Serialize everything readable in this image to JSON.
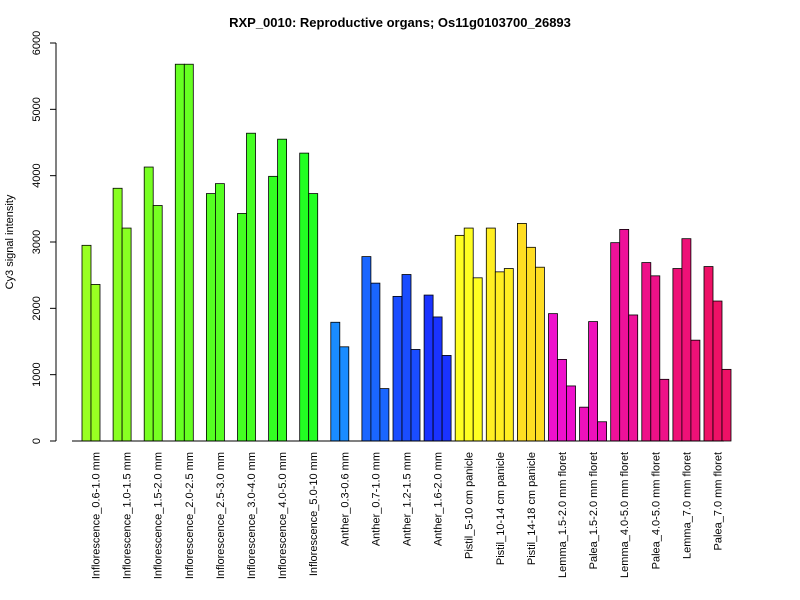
{
  "chart_data": {
    "type": "bar",
    "title": "RXP_0010: Reproductive organs; Os11g0103700_26893",
    "xlabel": "",
    "ylabel": "Cy3 signal intensity",
    "ylim": [
      0,
      6000
    ],
    "yticks": [
      0,
      1000,
      2000,
      3000,
      4000,
      5000,
      6000
    ],
    "grid": false,
    "groups": [
      {
        "label": "Inflorescence_0.6-1.0 mm",
        "color": "#99ff22",
        "values": [
          2950,
          2360
        ]
      },
      {
        "label": "Inflorescence_1.0-1.5 mm",
        "color": "#88ff22",
        "values": [
          3810,
          3210
        ]
      },
      {
        "label": "Inflorescence_1.5-2.0 mm",
        "color": "#77ff22",
        "values": [
          4130,
          3550
        ]
      },
      {
        "label": "Inflorescence_2.0-2.5 mm",
        "color": "#66ff22",
        "values": [
          5680,
          5680
        ]
      },
      {
        "label": "Inflorescence_2.5-3.0 mm",
        "color": "#55ff22",
        "values": [
          3730,
          3880
        ]
      },
      {
        "label": "Inflorescence_3.0-4.0 mm",
        "color": "#44ff22",
        "values": [
          3430,
          4640
        ]
      },
      {
        "label": "Inflorescence_4.0-5.0 mm",
        "color": "#33ff22",
        "values": [
          3990,
          4550
        ]
      },
      {
        "label": "Inflorescence_5.0-10 mm",
        "color": "#22ff22",
        "values": [
          4340,
          3730
        ]
      },
      {
        "label": "Anther_0.3-0.6 mm",
        "color": "#1a8cff",
        "values": [
          1790,
          1420
        ]
      },
      {
        "label": "Anther_0.7-1.0 mm",
        "color": "#1a66ff",
        "values": [
          2780,
          2380,
          790
        ]
      },
      {
        "label": "Anther_1.2-1.5 mm",
        "color": "#1a4dff",
        "values": [
          2180,
          2510,
          1380
        ]
      },
      {
        "label": "Anther_1.6-2.0 mm",
        "color": "#1a33ff",
        "values": [
          2200,
          1870,
          1290
        ]
      },
      {
        "label": "Pistil_5-10 cm panicle",
        "color": "#ffff22",
        "values": [
          3100,
          3210,
          2460
        ]
      },
      {
        "label": "Pistil_10-14 cm panicle",
        "color": "#ffee22",
        "values": [
          3210,
          2550,
          2600
        ]
      },
      {
        "label": "Pistil_14-18 cm panicle",
        "color": "#ffdd22",
        "values": [
          3280,
          2920,
          2620
        ]
      },
      {
        "label": "Lemma_1.5-2.0 mm floret",
        "color": "#ee11cc",
        "values": [
          1920,
          1230,
          830
        ]
      },
      {
        "label": "Palea_1.5-2.0 mm floret",
        "color": "#ee11bb",
        "values": [
          510,
          1800,
          290
        ]
      },
      {
        "label": "Lemma_4.0-5.0 mm floret",
        "color": "#ee1199",
        "values": [
          2990,
          3190,
          1900
        ]
      },
      {
        "label": "Palea_4.0-5.0 mm floret",
        "color": "#ee1188",
        "values": [
          2690,
          2490,
          930
        ]
      },
      {
        "label": "Lemma_7.0 mm floret",
        "color": "#ee1177",
        "values": [
          2600,
          3050,
          1520
        ]
      },
      {
        "label": "Palea_7.0 mm floret",
        "color": "#ee1166",
        "values": [
          2630,
          2110,
          1080
        ]
      }
    ]
  }
}
